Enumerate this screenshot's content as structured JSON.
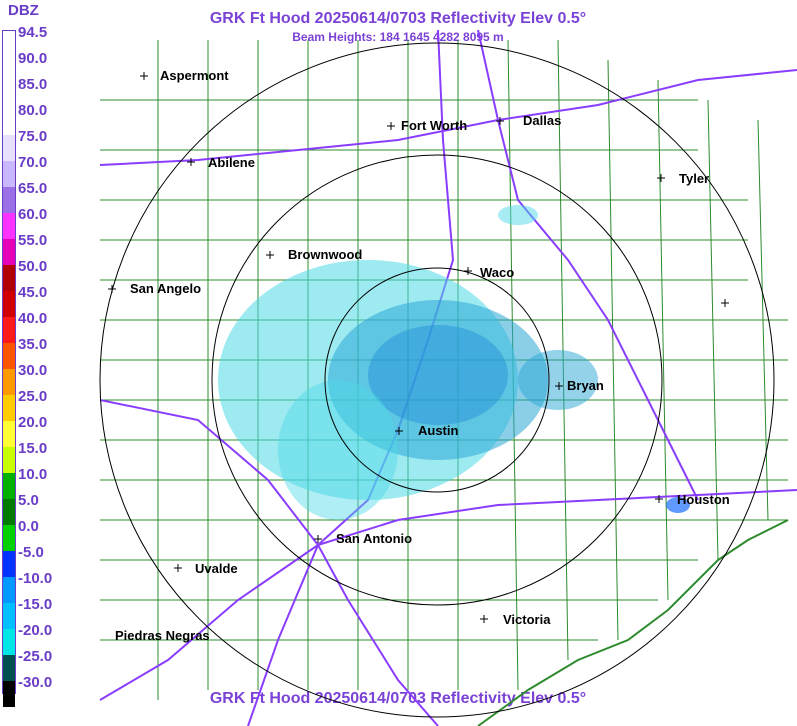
{
  "legend": {
    "title": "DBZ",
    "labels": [
      "94.5",
      "90.0",
      "85.0",
      "80.0",
      "75.0",
      "70.0",
      "65.0",
      "60.0",
      "55.0",
      "50.0",
      "45.0",
      "40.0",
      "35.0",
      "30.0",
      "25.0",
      "20.0",
      "15.0",
      "10.0",
      "5.0",
      "0.0",
      "-5.0",
      "-10.0",
      "-15.0",
      "-20.0",
      "-25.0",
      "-30.0"
    ],
    "colors": [
      "#ffffff",
      "#ffffff",
      "#ffffff",
      "#ffffff",
      "#e8e0ff",
      "#c9b8ff",
      "#9b70e6",
      "#ff33ff",
      "#e600b8",
      "#b00000",
      "#d10000",
      "#ff1a1a",
      "#ff5500",
      "#ff9900",
      "#ffcc00",
      "#ffff33",
      "#c8ff00",
      "#00b000",
      "#007a00",
      "#00d000",
      "#0033ff",
      "#0099ff",
      "#00bfff",
      "#00e6e6",
      "#005050",
      "#000000"
    ]
  },
  "header": {
    "title": "GRK Ft Hood 20250614/0703 Reflectivity Elev 0.5°",
    "beam_heights": "Beam Heights: 184 1645 4282 8095 m"
  },
  "footer": {
    "title": "GRK Ft Hood 20250614/0703 Reflectivity Elev 0.5°"
  },
  "cities": [
    {
      "name": "Aspermont"
    },
    {
      "name": "Fort Worth"
    },
    {
      "name": "Dallas"
    },
    {
      "name": "Abilene"
    },
    {
      "name": "Tyler"
    },
    {
      "name": "Brownwood"
    },
    {
      "name": "Waco"
    },
    {
      "name": "San Angelo"
    },
    {
      "name": "Bryan"
    },
    {
      "name": "Austin"
    },
    {
      "name": "Houston"
    },
    {
      "name": "San Antonio"
    },
    {
      "name": "Uvalde"
    },
    {
      "name": "Piedras Negras"
    },
    {
      "name": "Victoria"
    }
  ],
  "colors": {
    "accent": "#7b42d6",
    "county_lines": "#2e8b2e",
    "range_rings": "#000000",
    "highways": "#8a3dff",
    "echo_light": "#4dd9e6",
    "echo_mid": "#2aa6d6"
  }
}
